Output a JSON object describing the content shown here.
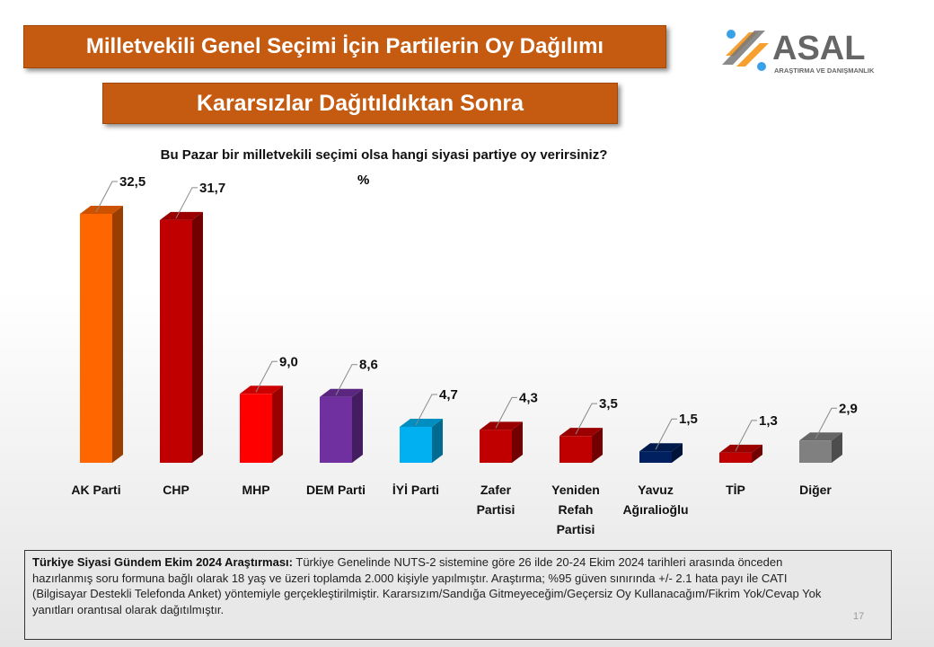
{
  "header": {
    "title": "Milletvekili Genel Seçimi İçin Partilerin Oy Dağılımı",
    "subtitle": "Kararsızlar Dağıtıldıktan Sonra"
  },
  "logo": {
    "name": "ASAL",
    "tagline": "ARAŞTIRMA VE DANIŞMANLIK"
  },
  "chart_data": {
    "type": "bar",
    "title": "Bu Pazar bir milletvekili seçimi olsa hangi siyasi partiye oy verirsiniz?",
    "ylabel": "%",
    "categories": [
      "AK Parti",
      "CHP",
      "MHP",
      "DEM Parti",
      "İYİ Parti",
      "Zafer Partisi",
      "Yeniden Refah Partisi",
      "Yavuz Ağıralioğlu",
      "TİP",
      "Diğer"
    ],
    "values": [
      32.5,
      31.7,
      9.0,
      8.6,
      4.7,
      4.3,
      3.5,
      1.5,
      1.3,
      2.9
    ],
    "data_labels": [
      "32,5",
      "31,7",
      "9,0",
      "8,6",
      "4,7",
      "4,3",
      "3,5",
      "1,5",
      "1,3",
      "2,9"
    ],
    "colors": [
      "#ff6600",
      "#c00000",
      "#ff0000",
      "#7030a0",
      "#00b0f0",
      "#c00000",
      "#c00000",
      "#002060",
      "#c00000",
      "#808080"
    ],
    "ylim": [
      0,
      33
    ],
    "grid": false
  },
  "footer": {
    "bold": "Türkiye Siyasi Gündem Ekim 2024 Araştırması:",
    "text": " Türkiye Genelinde  NUTS-2 sistemine göre 26 ilde 20-24 Ekim 2024 tarihleri arasında önceden hazırlanmış soru formuna bağlı olarak 18 yaş ve üzeri toplamda 2.000 kişiyle yapılmıştır. Araştırma; %95 güven sınırında +/- 2.1 hata payı ile CATI (Bilgisayar Destekli Telefonda Anket) yöntemiyle gerçekleştirilmiştir. Kararsızım/Sandığa Gitmeyeceğim/Geçersiz Oy Kullanacağım/Fikrim Yok/Cevap Yok yanıtları orantısal olarak dağıtılmıştır.",
    "page": "17"
  }
}
